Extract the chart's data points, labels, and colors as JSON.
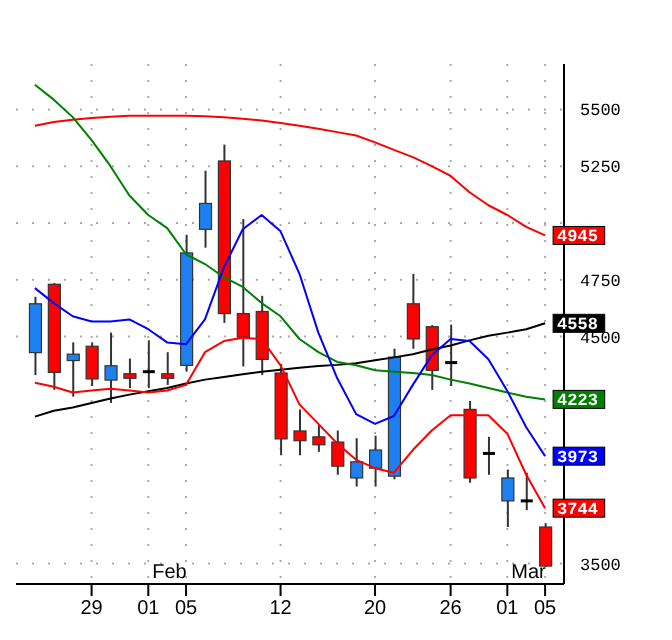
{
  "chart_data": {
    "type": "candlestick",
    "categories": [
      null,
      null,
      null,
      "29",
      null,
      null,
      "01",
      null,
      "05",
      null,
      null,
      null,
      null,
      "12",
      null,
      null,
      null,
      null,
      "20",
      null,
      null,
      null,
      "26",
      null,
      null,
      "01",
      null,
      "05"
    ],
    "ohlc": [
      [
        4429,
        4675,
        4330,
        4644
      ],
      [
        4730,
        4735,
        4265,
        4342
      ],
      [
        4394,
        4474,
        4235,
        4422
      ],
      [
        4457,
        4474,
        4282,
        4313
      ],
      [
        4308,
        4517,
        4207,
        4371
      ],
      [
        4336,
        4403,
        4273,
        4316
      ],
      [
        4342,
        4483,
        4273,
        4345
      ],
      [
        4336,
        4431,
        4287,
        4316
      ],
      [
        4373,
        4948,
        4345,
        4868
      ],
      [
        4972,
        5230,
        4891,
        5086
      ],
      [
        5273,
        5345,
        4560,
        4601
      ],
      [
        4601,
        5017,
        4368,
        4497
      ],
      [
        4610,
        4679,
        4330,
        4399
      ],
      [
        4339,
        4379,
        3977,
        4049
      ],
      [
        4084,
        4179,
        3977,
        4041
      ],
      [
        4058,
        4110,
        3992,
        4023
      ],
      [
        4035,
        4086,
        3891,
        3929
      ],
      [
        3877,
        4052,
        3839,
        3948
      ],
      [
        3920,
        4063,
        3839,
        4000
      ],
      [
        3885,
        4446,
        3871,
        4409
      ],
      [
        4644,
        4776,
        4446,
        4489
      ],
      [
        4543,
        4550,
        4265,
        4351
      ],
      [
        4385,
        4552,
        4282,
        4385
      ],
      [
        4179,
        4216,
        3856,
        3877
      ],
      [
        3985,
        4058,
        3891,
        3985
      ],
      [
        3776,
        3914,
        3661,
        3877
      ],
      [
        3776,
        3900,
        3735,
        3776
      ],
      [
        3661,
        3678,
        3485,
        3489
      ]
    ],
    "colors": [
      "#1e80f0",
      "#ff0000",
      "#1e80f0",
      "#ff0000",
      "#1e80f0",
      "#ff0000",
      "#000000",
      "#ff0000",
      "#1e80f0",
      "#1e80f0",
      "#ff0000",
      "#ff0000",
      "#ff0000",
      "#ff0000",
      "#ff0000",
      "#ff0000",
      "#ff0000",
      "#1e80f0",
      "#1e80f0",
      "#1e80f0",
      "#ff0000",
      "#ff0000",
      "#000000",
      "#ff0000",
      "#000000",
      "#1e80f0",
      "#000000",
      "#ff0000"
    ],
    "series": [
      {
        "type": "line",
        "color": "#ff0000",
        "values": [
          5428,
          5445,
          5455,
          5462,
          5468,
          5472,
          5472,
          5472,
          5472,
          5470,
          5465,
          5459,
          5451,
          5440,
          5428,
          5415,
          5400,
          5385,
          5355,
          5322,
          5290,
          5250,
          5207,
          5135,
          5078,
          5035,
          4983,
          4945
        ],
        "value_labels": [
          null,
          null,
          null,
          null,
          null,
          null,
          null,
          null,
          null,
          null,
          null,
          null,
          null,
          null,
          null,
          null,
          null,
          null,
          null,
          null,
          null,
          null,
          null,
          null,
          null,
          null,
          null,
          "4945"
        ]
      },
      {
        "type": "line",
        "color": "#000000",
        "values": [
          4147,
          4173,
          4187,
          4207,
          4227,
          4244,
          4259,
          4273,
          4293,
          4310,
          4322,
          4334,
          4345,
          4353,
          4362,
          4370,
          4375,
          4382,
          4395,
          4408,
          4422,
          4443,
          4460,
          4483,
          4503,
          4517,
          4532,
          4558
        ],
        "value_labels": [
          null,
          null,
          null,
          null,
          null,
          null,
          null,
          null,
          null,
          null,
          null,
          null,
          null,
          null,
          null,
          null,
          null,
          null,
          null,
          null,
          null,
          null,
          null,
          null,
          null,
          null,
          null,
          "4558"
        ]
      },
      {
        "type": "line",
        "color": "#008000",
        "values": [
          5609,
          5543,
          5466,
          5365,
          5250,
          5121,
          5035,
          4977,
          4862,
          4819,
          4761,
          4718,
          4647,
          4589,
          4489,
          4431,
          4388,
          4373,
          4351,
          4345,
          4339,
          4330,
          4310,
          4293,
          4273,
          4253,
          4235,
          4223
        ],
        "value_labels": [
          null,
          null,
          null,
          null,
          null,
          null,
          null,
          null,
          null,
          null,
          null,
          null,
          null,
          null,
          null,
          null,
          null,
          null,
          null,
          null,
          null,
          null,
          null,
          null,
          null,
          null,
          null,
          "4223"
        ]
      },
      {
        "type": "line",
        "color": "#0000ff",
        "values": [
          4713,
          4647,
          4589,
          4566,
          4566,
          4575,
          4532,
          4474,
          4466,
          4575,
          4804,
          4972,
          5035,
          4963,
          4776,
          4517,
          4316,
          4158,
          4115,
          4150,
          4287,
          4417,
          4489,
          4480,
          4400,
          4260,
          4100,
          3973
        ],
        "value_labels": [
          null,
          null,
          null,
          null,
          null,
          null,
          null,
          null,
          null,
          null,
          null,
          null,
          null,
          null,
          null,
          null,
          null,
          null,
          null,
          null,
          null,
          null,
          null,
          null,
          null,
          null,
          null,
          "3973"
        ]
      },
      {
        "type": "line",
        "color": "#ff0000",
        "values": [
          4296,
          4279,
          4253,
          4262,
          4270,
          4262,
          4253,
          4262,
          4287,
          4431,
          4480,
          4494,
          4489,
          4373,
          4201,
          4115,
          4029,
          3957,
          3920,
          3900,
          4000,
          4086,
          4153,
          4153,
          4153,
          4072,
          3891,
          3744
        ],
        "value_labels": [
          null,
          null,
          null,
          null,
          null,
          null,
          null,
          null,
          null,
          null,
          null,
          null,
          null,
          null,
          null,
          null,
          null,
          null,
          null,
          null,
          null,
          null,
          null,
          null,
          null,
          null,
          null,
          "3744"
        ]
      }
    ],
    "ylim": [
      3410,
      5700
    ],
    "yticks": [
      3500,
      4500,
      4750,
      {
        "value": 5000,
        "label": null
      },
      5250,
      5500
    ],
    "annotations": [
      "Feb",
      "Mar"
    ],
    "grid": true,
    "legend": false,
    "marker": "none",
    "line_style": "solid"
  }
}
